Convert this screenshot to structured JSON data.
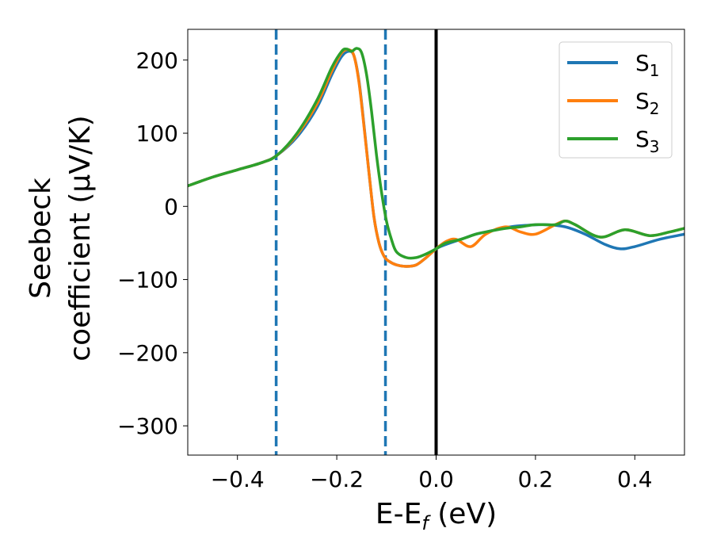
{
  "chart_data": {
    "type": "line",
    "title": "",
    "xlabel_main": "E-E",
    "xlabel_sub": "f",
    "xlabel_tail": " (eV)",
    "ylabel_line1": "Seebeck",
    "ylabel_line2": "coefficient  (μV/K)",
    "xlim": [
      -0.5,
      0.5
    ],
    "ylim": [
      -340,
      242
    ],
    "xticks": [
      -0.4,
      -0.2,
      0.0,
      0.2,
      0.4
    ],
    "xtick_labels": [
      "−0.4",
      "−0.2",
      "0.0",
      "0.2",
      "0.4"
    ],
    "yticks": [
      -300,
      -200,
      -100,
      0,
      100,
      200
    ],
    "ytick_labels": [
      "−300",
      "−200",
      "−100",
      "0",
      "100",
      "200"
    ],
    "grid": false,
    "legend_position": "top-right",
    "reference_lines": [
      {
        "x": -0.322,
        "style": "dashed",
        "color": "#1f77b4"
      },
      {
        "x": -0.102,
        "style": "dashed",
        "color": "#1f77b4"
      },
      {
        "x": 0.0,
        "style": "solid",
        "color": "#000000"
      }
    ],
    "series": [
      {
        "name": "S",
        "sub": "1",
        "color": "#1f77b4",
        "x": [
          -0.5,
          -0.45,
          -0.4,
          -0.35,
          -0.32,
          -0.28,
          -0.24,
          -0.21,
          -0.19,
          -0.175,
          -0.165,
          -0.155,
          -0.145,
          -0.135,
          -0.125,
          -0.115,
          -0.105,
          -0.095,
          -0.08,
          -0.06,
          -0.04,
          -0.02,
          0.0,
          0.02,
          0.05,
          0.08,
          0.1,
          0.12,
          0.15,
          0.18,
          0.22,
          0.26,
          0.3,
          0.34,
          0.37,
          0.4,
          0.45,
          0.5
        ],
        "y": [
          28,
          40,
          50,
          60,
          70,
          95,
          135,
          180,
          205,
          212,
          205,
          170,
          110,
          45,
          -15,
          -50,
          -68,
          -75,
          -80,
          -82,
          -80,
          -70,
          -58,
          -52,
          -45,
          -38,
          -35,
          -32,
          -28,
          -26,
          -25,
          -28,
          -38,
          -52,
          -58,
          -55,
          -45,
          -38
        ]
      },
      {
        "name": "S",
        "sub": "2",
        "color": "#ff7f0e",
        "x": [
          -0.5,
          -0.45,
          -0.4,
          -0.35,
          -0.32,
          -0.28,
          -0.24,
          -0.21,
          -0.19,
          -0.175,
          -0.165,
          -0.155,
          -0.145,
          -0.135,
          -0.125,
          -0.115,
          -0.105,
          -0.095,
          -0.08,
          -0.06,
          -0.04,
          -0.02,
          0.0,
          0.02,
          0.04,
          0.07,
          0.1,
          0.14,
          0.17,
          0.2,
          0.24,
          0.26,
          0.28,
          0.33,
          0.38,
          0.43,
          0.47,
          0.5
        ],
        "y": [
          28,
          40,
          50,
          60,
          70,
          98,
          140,
          185,
          210,
          214,
          205,
          168,
          108,
          45,
          -15,
          -50,
          -68,
          -75,
          -80,
          -82,
          -80,
          -70,
          -58,
          -48,
          -45,
          -55,
          -38,
          -28,
          -35,
          -38,
          -25,
          -20,
          -25,
          -42,
          -32,
          -40,
          -35,
          -30
        ]
      },
      {
        "name": "S",
        "sub": "3",
        "color": "#2ca02c",
        "x": [
          -0.5,
          -0.45,
          -0.4,
          -0.35,
          -0.32,
          -0.28,
          -0.24,
          -0.21,
          -0.19,
          -0.18,
          -0.17,
          -0.16,
          -0.15,
          -0.14,
          -0.13,
          -0.12,
          -0.11,
          -0.1,
          -0.09,
          -0.08,
          -0.06,
          -0.04,
          -0.02,
          0.0,
          0.02,
          0.05,
          0.08,
          0.1,
          0.14,
          0.17,
          0.2,
          0.24,
          0.26,
          0.28,
          0.33,
          0.38,
          0.43,
          0.47,
          0.5
        ],
        "y": [
          28,
          40,
          50,
          60,
          70,
          100,
          145,
          190,
          212,
          215,
          212,
          216,
          210,
          180,
          130,
          70,
          20,
          -20,
          -45,
          -62,
          -70,
          -70,
          -65,
          -58,
          -50,
          -45,
          -38,
          -35,
          -30,
          -28,
          -25,
          -25,
          -20,
          -25,
          -42,
          -32,
          -40,
          -35,
          -30
        ]
      }
    ]
  }
}
